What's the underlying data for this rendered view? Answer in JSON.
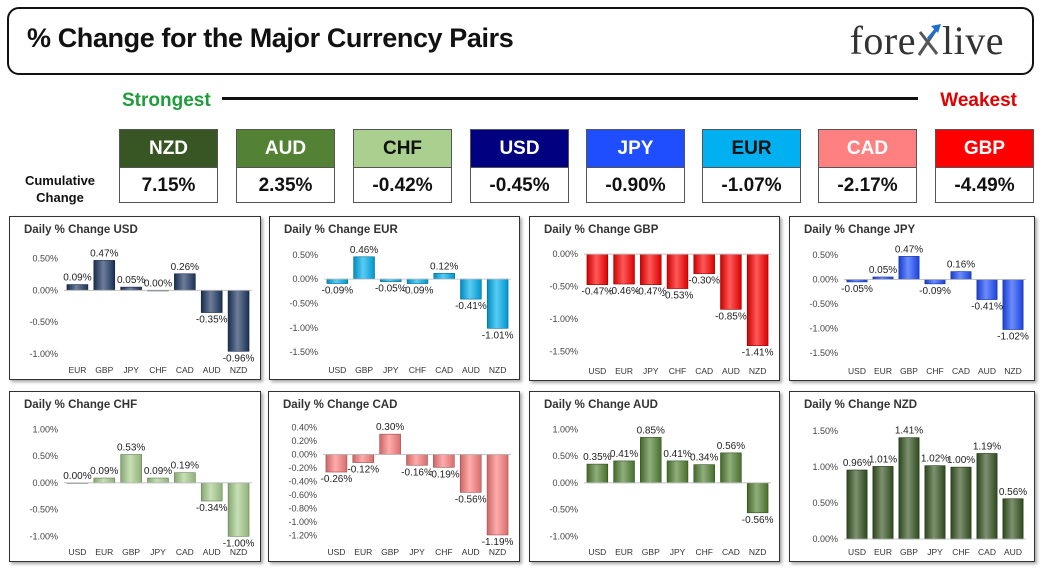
{
  "header": {
    "title": "% Change for the Major Currency Pairs",
    "logo_left": "fore",
    "logo_right": "live"
  },
  "legend": {
    "strongest": "Strongest",
    "weakest": "Weakest"
  },
  "cumulative_label_1": "Cumulative",
  "cumulative_label_2": "Change",
  "currencies": [
    {
      "name": "NZD",
      "value": "7.15%",
      "color": "#375623",
      "text": "#ffffff"
    },
    {
      "name": "AUD",
      "value": "2.35%",
      "color": "#548235",
      "text": "#ffffff"
    },
    {
      "name": "CHF",
      "value": "-0.42%",
      "color": "#a9d08e",
      "text": "#111111"
    },
    {
      "name": "USD",
      "value": "-0.45%",
      "color": "#000080",
      "text": "#ffffff"
    },
    {
      "name": "JPY",
      "value": "-0.90%",
      "color": "#1f4eff",
      "text": "#ffffff"
    },
    {
      "name": "EUR",
      "value": "-1.07%",
      "color": "#00b0f0",
      "text": "#111111"
    },
    {
      "name": "CAD",
      "value": "-2.17%",
      "color": "#ff8080",
      "text": "#ffffff"
    },
    {
      "name": "GBP",
      "value": "-4.49%",
      "color": "#ff0000",
      "text": "#ffffff"
    }
  ],
  "chart_data": [
    {
      "type": "bar",
      "title": "Daily % Change USD",
      "categories": [
        "EUR",
        "GBP",
        "JPY",
        "CHF",
        "CAD",
        "AUD",
        "NZD"
      ],
      "values": [
        0.09,
        0.47,
        0.05,
        0.0,
        0.26,
        -0.35,
        -0.96
      ],
      "labels": [
        "0.09%",
        "0.47%",
        "0.05%",
        "0.00%",
        "0.26%",
        "-0.35%",
        "-0.96%"
      ],
      "ticks": [
        0.5,
        0,
        -0.5,
        -1
      ],
      "tick_labels": [
        "0.50%",
        "0.00%",
        "-0.50%",
        "-1.00%"
      ],
      "ylim": [
        -1.05,
        0.65
      ],
      "color": "#1f3864"
    },
    {
      "type": "bar",
      "title": "Daily % Change EUR",
      "categories": [
        "USD",
        "GBP",
        "JPY",
        "CHF",
        "CAD",
        "AUD",
        "NZD"
      ],
      "values": [
        -0.09,
        0.46,
        -0.05,
        -0.09,
        0.12,
        -0.41,
        -1.01
      ],
      "labels": [
        "-0.09%",
        "0.46%",
        "-0.05%",
        "-0.09%",
        "0.12%",
        "-0.41%",
        "-1.01%"
      ],
      "ticks": [
        0.5,
        0,
        -0.5,
        -1,
        -1.5
      ],
      "tick_labels": [
        "0.50%",
        "0.00%",
        "-0.50%",
        "-1.00%",
        "-1.50%"
      ],
      "ylim": [
        -1.6,
        0.62
      ],
      "color": "#00b0f0"
    },
    {
      "type": "bar",
      "title": "Daily % Change GBP",
      "categories": [
        "USD",
        "EUR",
        "JPY",
        "CHF",
        "CAD",
        "AUD",
        "NZD"
      ],
      "values": [
        -0.47,
        -0.46,
        -0.47,
        -0.53,
        -0.3,
        -0.85,
        -1.41
      ],
      "labels": [
        "-0.47%",
        "-0.46%",
        "-0.47%",
        "-0.53%",
        "-0.30%",
        "-0.85%",
        "-1.41%"
      ],
      "ticks": [
        0,
        -0.5,
        -1,
        -1.5
      ],
      "tick_labels": [
        "0.00%",
        "-0.50%",
        "-1.00%",
        "-1.50%"
      ],
      "ylim": [
        -1.6,
        0.08
      ],
      "color": "#ff0000"
    },
    {
      "type": "bar",
      "title": "Daily % Change JPY",
      "categories": [
        "USD",
        "EUR",
        "GBP",
        "CHF",
        "CAD",
        "AUD",
        "NZD"
      ],
      "values": [
        -0.05,
        0.05,
        0.47,
        -0.09,
        0.16,
        -0.41,
        -1.02
      ],
      "labels": [
        "-0.05%",
        "0.05%",
        "0.47%",
        "-0.09%",
        "0.16%",
        "-0.41%",
        "-1.02%"
      ],
      "ticks": [
        0.5,
        0,
        -0.5,
        -1,
        -1.5
      ],
      "tick_labels": [
        "0.50%",
        "0.00%",
        "-0.50%",
        "-1.00%",
        "-1.50%"
      ],
      "ylim": [
        -1.6,
        0.62
      ],
      "color": "#1f4eff"
    },
    {
      "type": "bar",
      "title": "Daily % Change CHF",
      "categories": [
        "USD",
        "EUR",
        "GBP",
        "JPY",
        "CAD",
        "AUD",
        "NZD"
      ],
      "values": [
        0.0,
        0.09,
        0.53,
        0.09,
        0.19,
        -0.34,
        -1.0
      ],
      "labels": [
        "0.00%",
        "0.09%",
        "0.53%",
        "0.09%",
        "0.19%",
        "-0.34%",
        "-1.00%"
      ],
      "ticks": [
        1,
        0.5,
        0,
        -0.5,
        -1
      ],
      "tick_labels": [
        "1.00%",
        "0.50%",
        "0.00%",
        "-0.50%",
        "-1.00%"
      ],
      "ylim": [
        -1.05,
        1.1
      ],
      "color": "#a9d08e"
    },
    {
      "type": "bar",
      "title": "Daily % Change CAD",
      "categories": [
        "USD",
        "EUR",
        "GBP",
        "JPY",
        "CHF",
        "AUD",
        "NZD"
      ],
      "values": [
        -0.26,
        -0.12,
        0.3,
        -0.16,
        -0.19,
        -0.56,
        -1.19
      ],
      "labels": [
        "-0.26%",
        "-0.12%",
        "0.30%",
        "-0.16%",
        "-0.19%",
        "-0.56%",
        "-1.19%"
      ],
      "ticks": [
        0.4,
        0.2,
        0,
        -0.2,
        -0.4,
        -0.6,
        -0.8,
        -1.0,
        -1.2
      ],
      "tick_labels": [
        "0.40%",
        "0.20%",
        "0.00%",
        "-0.20%",
        "-0.40%",
        "-0.60%",
        "-0.80%",
        "-1.00%",
        "-1.20%"
      ],
      "ylim": [
        -1.25,
        0.45
      ],
      "color": "#ff8080"
    },
    {
      "type": "bar",
      "title": "Daily % Change AUD",
      "categories": [
        "USD",
        "EUR",
        "GBP",
        "JPY",
        "CHF",
        "CAD",
        "NZD"
      ],
      "values": [
        0.35,
        0.41,
        0.85,
        0.41,
        0.34,
        0.56,
        -0.56
      ],
      "labels": [
        "0.35%",
        "0.41%",
        "0.85%",
        "0.41%",
        "0.34%",
        "0.56%",
        "-0.56%"
      ],
      "ticks": [
        1,
        0.5,
        0,
        -0.5,
        -1
      ],
      "tick_labels": [
        "1.00%",
        "0.50%",
        "0.00%",
        "-0.50%",
        "-1.00%"
      ],
      "ylim": [
        -1.05,
        1.1
      ],
      "color": "#548235"
    },
    {
      "type": "bar",
      "title": "Daily % Change NZD",
      "categories": [
        "USD",
        "EUR",
        "GBP",
        "JPY",
        "CHF",
        "CAD",
        "AUD"
      ],
      "values": [
        0.96,
        1.01,
        1.41,
        1.02,
        1.0,
        1.19,
        0.56
      ],
      "labels": [
        "0.96%",
        "1.01%",
        "1.41%",
        "1.02%",
        "1.00%",
        "1.19%",
        "0.56%"
      ],
      "ticks": [
        1.5,
        1,
        0.5,
        0
      ],
      "tick_labels": [
        "1.50%",
        "1.00%",
        "0.50%",
        "0.00%"
      ],
      "ylim": [
        0,
        1.6
      ],
      "color": "#375623"
    }
  ]
}
